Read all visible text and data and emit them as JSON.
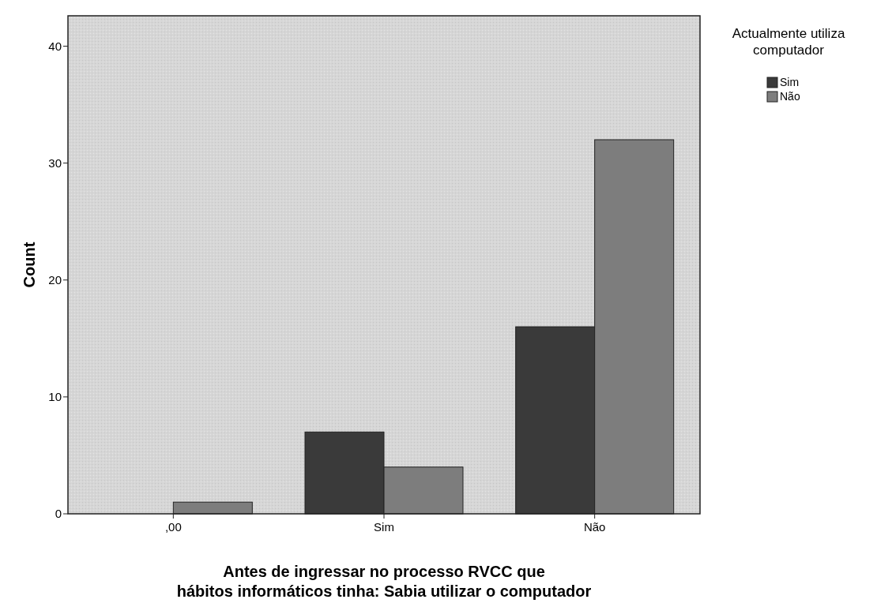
{
  "chart_data": {
    "type": "bar",
    "xlabel": "Antes de ingressar no processo RVCC que hábitos informáticos tinha: Sabia utilizar o computador",
    "ylabel": "Count",
    "legend_title": "Actualmente utiliza computador",
    "categories": [
      ",00",
      "Sim",
      "Não"
    ],
    "series": [
      {
        "name": "Sim",
        "color": "#3a3a3a",
        "values": [
          0,
          7,
          16
        ]
      },
      {
        "name": "Não",
        "color": "#7d7d7d",
        "values": [
          1,
          4,
          32
        ]
      }
    ],
    "ylim": [
      0,
      42.6
    ],
    "yticks": [
      0,
      10,
      20,
      30,
      40
    ],
    "grid": false,
    "legend": "right"
  }
}
